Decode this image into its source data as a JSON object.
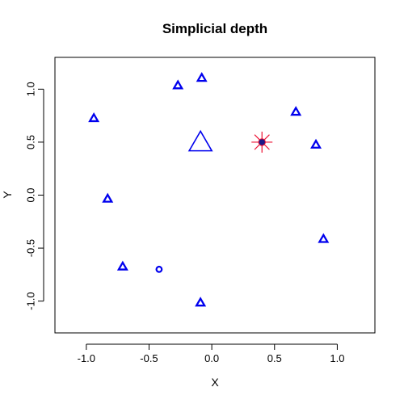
{
  "chart_data": {
    "type": "scatter",
    "title": "Simplicial depth",
    "xlabel": "X",
    "ylabel": "Y",
    "xlim": [
      -1.25,
      1.3
    ],
    "ylim": [
      -1.3,
      1.3
    ],
    "x_ticks": [
      -1.0,
      -0.5,
      0.0,
      0.5,
      1.0
    ],
    "x_tick_labels": [
      "-1.0",
      "-0.5",
      "0.0",
      "0.5",
      "1.0"
    ],
    "y_ticks": [
      -1.0,
      -0.5,
      0.0,
      0.5,
      1.0
    ],
    "y_tick_labels": [
      "-1.0",
      "-0.5",
      "0.0",
      "0.5",
      "1.0"
    ],
    "grid": false,
    "legend": "none",
    "colors": {
      "points": "#0000ee",
      "marker": "#ee1133",
      "marker_center": "#1a1a8a"
    },
    "series": [
      {
        "marker": "triangle",
        "points": [
          {
            "x": -0.27,
            "y": 1.03
          },
          {
            "x": -0.08,
            "y": 1.1
          },
          {
            "x": -0.94,
            "y": 0.72
          },
          {
            "x": 0.67,
            "y": 0.78
          },
          {
            "x": 0.83,
            "y": 0.47
          },
          {
            "x": -0.83,
            "y": -0.04
          },
          {
            "x": 0.89,
            "y": -0.42
          },
          {
            "x": -0.71,
            "y": -0.68
          },
          {
            "x": -0.09,
            "y": -1.02
          }
        ]
      },
      {
        "marker": "circle",
        "points": [
          {
            "x": -0.42,
            "y": -0.7
          }
        ]
      },
      {
        "marker": "large-triangle",
        "points": [
          {
            "x": -0.09,
            "y": 0.48
          }
        ]
      },
      {
        "marker": "star-with-dot",
        "points": [
          {
            "x": 0.4,
            "y": 0.5
          }
        ]
      }
    ]
  }
}
